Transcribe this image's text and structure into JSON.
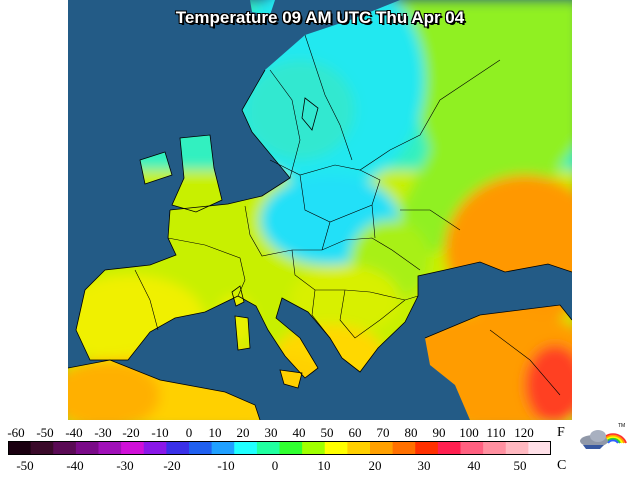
{
  "title": "Temperature 09 AM UTC Thu Apr 04",
  "legend": {
    "fahrenheit_ticks": [
      "-60",
      "-50",
      "-40",
      "-30",
      "-20",
      "-10",
      "0",
      "10",
      "20",
      "30",
      "40",
      "50",
      "60",
      "70",
      "80",
      "90",
      "100",
      "110",
      "120"
    ],
    "celsius_ticks": [
      "-50",
      "-40",
      "-30",
      "-20",
      "-10",
      "0",
      "10",
      "20",
      "30",
      "40",
      "50"
    ],
    "fahrenheit_unit": "F",
    "celsius_unit": "C",
    "colors": [
      "#1a0010",
      "#3a0a2a",
      "#5a0a55",
      "#7a0a88",
      "#a010b8",
      "#d010d8",
      "#8a18e8",
      "#3a30e8",
      "#2060f0",
      "#20a0ff",
      "#20ffff",
      "#20ffa0",
      "#30ff30",
      "#a0ff00",
      "#ffff00",
      "#ffd000",
      "#ffa000",
      "#ff7000",
      "#ff3000",
      "#ff2050",
      "#ff6080",
      "#ff90a0",
      "#ffb8c0",
      "#ffe0e8"
    ]
  },
  "logo_icon": "weather-cloud-rainbow-logo",
  "colors": {
    "sea": "#235b86",
    "land_background": "#ffffff",
    "border": "#000000"
  }
}
